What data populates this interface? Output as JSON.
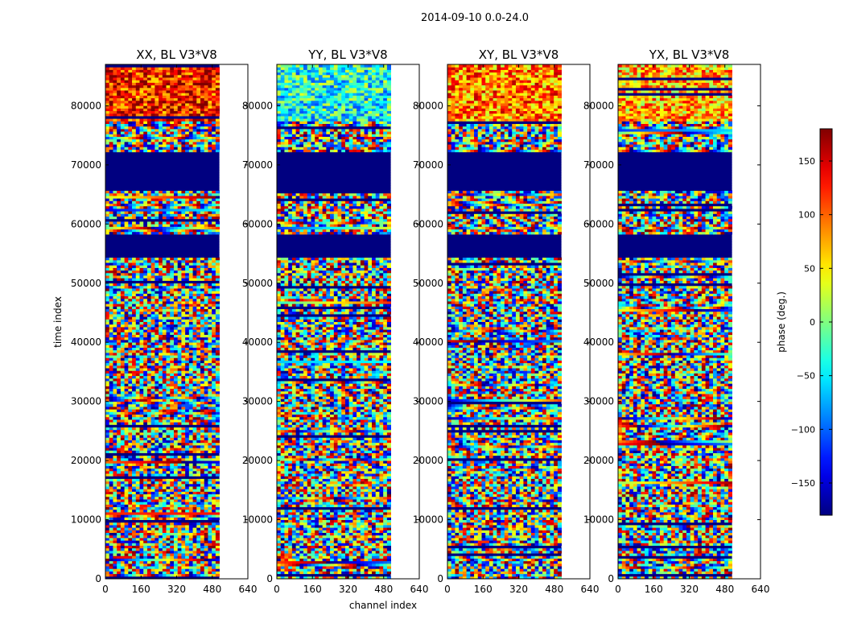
{
  "chart_data": {
    "type": "heatmap",
    "suptitle": "2014-09-10 0.0-24.0",
    "xlabel": "channel index",
    "ylabel": "time index",
    "xlim": [
      0,
      640
    ],
    "ylim": [
      0,
      87000
    ],
    "data_channels": 512,
    "xticks": [
      0,
      160,
      320,
      480,
      640
    ],
    "yticks": [
      0,
      10000,
      20000,
      30000,
      40000,
      50000,
      60000,
      70000,
      80000
    ],
    "xtick_labels": [
      "0",
      "160",
      "320",
      "480",
      "640"
    ],
    "ytick_labels": [
      "0",
      "10000",
      "20000",
      "30000",
      "40000",
      "50000",
      "60000",
      "70000",
      "80000"
    ],
    "panels": [
      {
        "title": "XX, BL V3*V8",
        "pol": "XX"
      },
      {
        "title": "YY, BL V3*V8",
        "pol": "YY"
      },
      {
        "title": "XY, BL V3*V8",
        "pol": "XY"
      },
      {
        "title": "YX, BL V3*V8",
        "pol": "YX"
      }
    ],
    "flagged_time_ranges": [
      [
        54000,
        58500
      ],
      [
        65500,
        72500
      ]
    ],
    "colorbar": {
      "label": "phase (deg.)",
      "range": [
        -180,
        180
      ],
      "ticks": [
        -150,
        -100,
        -50,
        0,
        50,
        100,
        150
      ],
      "tick_labels": [
        "−150",
        "−100",
        "−50",
        "0",
        "50",
        "100",
        "150"
      ],
      "colormap": "jet"
    }
  }
}
